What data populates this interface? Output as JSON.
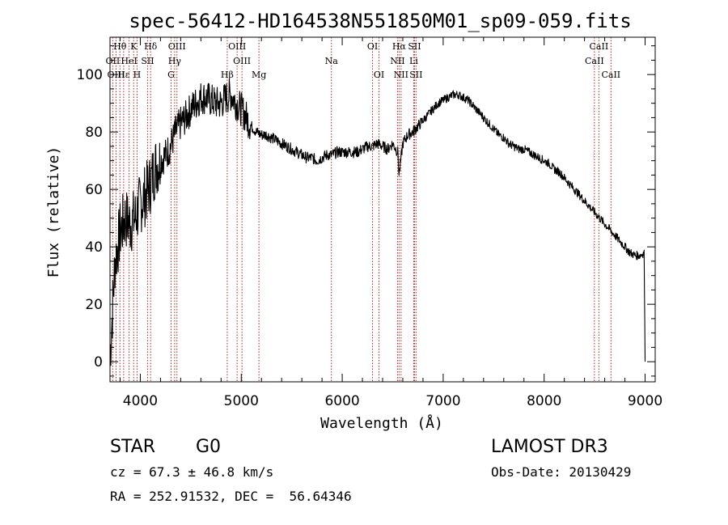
{
  "chart_data": {
    "type": "line",
    "title": "spec-56412-HD164538N551850M01_sp09-059.fits",
    "xlabel": "Wavelength (Å)",
    "ylabel": "Flux (relative)",
    "xlim": [
      3700,
      9100
    ],
    "ylim": [
      -7,
      113
    ],
    "xticks": [
      4000,
      5000,
      6000,
      7000,
      8000,
      9000
    ],
    "yticks": [
      0,
      20,
      40,
      60,
      80,
      100
    ],
    "xtick_labels": [
      "4000",
      "5000",
      "6000",
      "7000",
      "8000",
      "9000"
    ],
    "ytick_labels": [
      "0",
      "20",
      "40",
      "60",
      "80",
      "100"
    ],
    "grid": false,
    "series": [
      {
        "name": "spectrum",
        "x": [
          3700,
          3720,
          3750,
          3800,
          3850,
          3900,
          3950,
          4000,
          4050,
          4100,
          4150,
          4200,
          4250,
          4300,
          4350,
          4400,
          4450,
          4500,
          4550,
          4600,
          4650,
          4700,
          4750,
          4800,
          4850,
          4900,
          4950,
          5000,
          5050,
          5100,
          5150,
          5200,
          5250,
          5300,
          5350,
          5400,
          5450,
          5500,
          5550,
          5600,
          5650,
          5700,
          5750,
          5800,
          5850,
          5900,
          5950,
          6000,
          6050,
          6100,
          6150,
          6200,
          6250,
          6300,
          6350,
          6400,
          6450,
          6500,
          6550,
          6563,
          6600,
          6650,
          6700,
          6750,
          6800,
          6850,
          6900,
          6950,
          7000,
          7050,
          7100,
          7150,
          7200,
          7250,
          7300,
          7350,
          7400,
          7450,
          7500,
          7550,
          7600,
          7650,
          7700,
          7750,
          7800,
          7850,
          7900,
          7950,
          8000,
          8050,
          8100,
          8150,
          8200,
          8250,
          8300,
          8350,
          8400,
          8450,
          8500,
          8550,
          8600,
          8650,
          8700,
          8750,
          8800,
          8850,
          8900,
          8950,
          8990,
          9000
        ],
        "values": [
          2,
          15,
          35,
          45,
          50,
          48,
          50,
          55,
          58,
          62,
          68,
          70,
          72,
          75,
          80,
          83,
          85,
          88,
          90,
          92,
          92,
          91,
          90,
          90,
          92,
          93,
          90,
          88,
          85,
          82,
          80,
          79,
          79,
          78,
          77,
          76,
          75,
          74,
          73,
          72,
          71,
          71,
          70,
          71,
          72,
          72,
          73,
          73,
          73,
          73,
          73,
          74,
          75,
          75,
          76,
          75,
          74,
          76,
          73,
          65,
          76,
          79,
          80,
          82,
          84,
          86,
          88,
          90,
          91,
          92,
          93,
          93,
          92,
          91,
          89,
          87,
          85,
          83,
          81,
          79,
          78,
          76,
          75,
          74,
          74,
          73,
          72,
          71,
          70,
          69,
          67,
          66,
          64,
          62,
          60,
          58,
          56,
          54,
          52,
          50,
          48,
          46,
          44,
          42,
          40,
          38,
          37,
          37,
          38,
          0
        ]
      }
    ],
    "line_markers": [
      {
        "label": "Hθ",
        "wavelength": 3798,
        "row": 0
      },
      {
        "label": "K",
        "wavelength": 3934,
        "row": 0
      },
      {
        "label": "Hδ",
        "wavelength": 4102,
        "row": 0
      },
      {
        "label": "OIII",
        "wavelength": 4363,
        "row": 0
      },
      {
        "label": "OIII",
        "wavelength": 4959,
        "row": 0
      },
      {
        "label": "OI",
        "wavelength": 6300,
        "row": 0
      },
      {
        "label": "Hα",
        "wavelength": 6563,
        "row": 0
      },
      {
        "label": "SII",
        "wavelength": 6716,
        "row": 0
      },
      {
        "label": "CaII",
        "wavelength": 8542,
        "row": 0
      },
      {
        "label": "OII",
        "wavelength": 3727,
        "row": 1
      },
      {
        "label": "HeI",
        "wavelength": 3889,
        "row": 1
      },
      {
        "label": "SII",
        "wavelength": 4072,
        "row": 1
      },
      {
        "label": "Hγ",
        "wavelength": 4340,
        "row": 1
      },
      {
        "label": "OIII",
        "wavelength": 5007,
        "row": 1
      },
      {
        "label": "Na",
        "wavelength": 5893,
        "row": 1
      },
      {
        "label": "NII",
        "wavelength": 6548,
        "row": 1
      },
      {
        "label": "Li",
        "wavelength": 6708,
        "row": 1
      },
      {
        "label": "CaII",
        "wavelength": 8498,
        "row": 1
      },
      {
        "label": "OIII",
        "wavelength": 3760,
        "row": 2
      },
      {
        "label": "Hε",
        "wavelength": 3835,
        "row": 2
      },
      {
        "label": "H",
        "wavelength": 3968,
        "row": 2
      },
      {
        "label": "G",
        "wavelength": 4305,
        "row": 2
      },
      {
        "label": "Hβ",
        "wavelength": 4861,
        "row": 2
      },
      {
        "label": "Mg",
        "wavelength": 5175,
        "row": 2
      },
      {
        "label": "OI",
        "wavelength": 6364,
        "row": 2
      },
      {
        "label": "NII",
        "wavelength": 6583,
        "row": 2
      },
      {
        "label": "SII",
        "wavelength": 6731,
        "row": 2
      },
      {
        "label": "CaII",
        "wavelength": 8662,
        "row": 2
      }
    ]
  },
  "info": {
    "object_type": "STAR",
    "subclass": "G0",
    "survey": "LAMOST DR3",
    "cz": "cz = 67.3 ± 46.8 km/s",
    "obs_date": "Obs-Date: 20130429",
    "coords": "RA = 252.91532, DEC =  56.64346"
  }
}
